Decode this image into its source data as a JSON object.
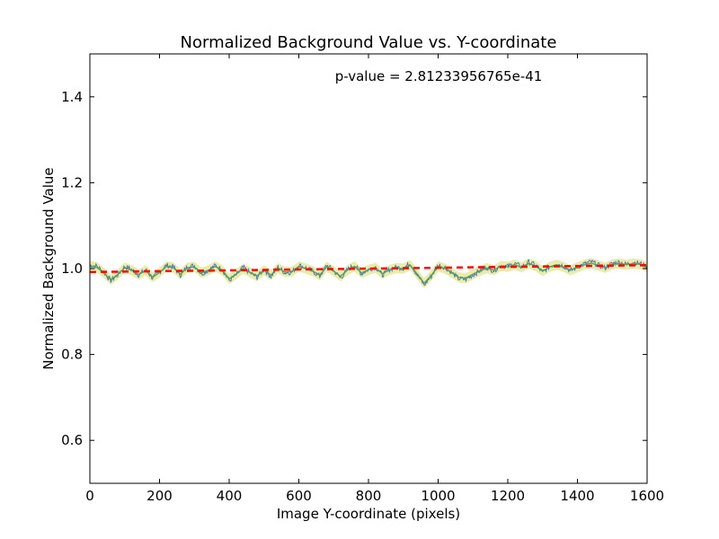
{
  "chart_data": {
    "type": "line",
    "title": "Normalized Background Value vs. Y-coordinate",
    "xlabel": "Image Y-coordinate (pixels)",
    "ylabel": "Normalized Background Value",
    "xlim": [
      0,
      1600
    ],
    "ylim": [
      0.5,
      1.5
    ],
    "x_ticks": [
      0,
      200,
      400,
      600,
      800,
      1000,
      1200,
      1400,
      1600
    ],
    "x_tick_labels": [
      "0",
      "200",
      "400",
      "600",
      "800",
      "1000",
      "1200",
      "1400",
      "1600"
    ],
    "y_ticks": [
      0.6,
      0.8,
      1.0,
      1.2,
      1.4
    ],
    "y_tick_labels": [
      "0.6",
      "0.8",
      "1.0",
      "1.2",
      "1.4"
    ],
    "grid": false,
    "annotation": "p-value = 2.81233956765e-41",
    "colors": {
      "raw": "#4a6fb5",
      "smooth": "#5a9a5a",
      "band": "#e4eaa0",
      "fit": "#ff0000"
    },
    "series": [
      {
        "kind": "raw",
        "x": [
          0,
          20,
          40,
          60,
          80,
          100,
          120,
          140,
          160,
          180,
          200,
          220,
          240,
          260,
          280,
          300,
          320,
          340,
          360,
          380,
          400,
          420,
          440,
          460,
          480,
          500,
          520,
          540,
          560,
          580,
          600,
          620,
          640,
          660,
          680,
          700,
          720,
          740,
          760,
          780,
          800,
          820,
          840,
          860,
          880,
          900,
          920,
          940,
          960,
          980,
          1000,
          1020,
          1040,
          1060,
          1080,
          1100,
          1120,
          1140,
          1160,
          1180,
          1200,
          1220,
          1240,
          1260,
          1280,
          1300,
          1320,
          1340,
          1360,
          1380,
          1400,
          1420,
          1440,
          1460,
          1480,
          1500,
          1520,
          1540,
          1560,
          1580,
          1600
        ],
        "y": [
          1.008,
          1.006,
          0.992,
          0.972,
          0.985,
          1.005,
          0.998,
          0.985,
          0.998,
          0.978,
          0.992,
          1.008,
          1.004,
          0.985,
          1.004,
          1.007,
          0.988,
          0.996,
          1.007,
          0.998,
          0.972,
          0.985,
          1.003,
          0.99,
          0.98,
          0.998,
          0.982,
          1.004,
          0.99,
          0.992,
          1.008,
          1.002,
          0.994,
          0.982,
          1.008,
          0.995,
          0.978,
          0.998,
          1.008,
          0.988,
          0.998,
          1.004,
          0.985,
          0.998,
          1.003,
          1.001,
          1.012,
          0.985,
          0.962,
          0.982,
          1.008,
          1.003,
          0.99,
          0.976,
          0.975,
          0.985,
          0.995,
          1.003,
          0.995,
          1.008,
          1.005,
          1.012,
          1.004,
          1.015,
          1.008,
          0.992,
          1.005,
          1.012,
          1.006,
          0.995,
          1.004,
          1.011,
          1.016,
          1.008,
          1.002,
          1.012,
          1.015,
          1.01,
          1.015,
          1.012,
          1.005
        ]
      },
      {
        "kind": "smoothed",
        "x": [
          0,
          20,
          40,
          60,
          80,
          100,
          120,
          140,
          160,
          180,
          200,
          220,
          240,
          260,
          280,
          300,
          320,
          340,
          360,
          380,
          400,
          420,
          440,
          460,
          480,
          500,
          520,
          540,
          560,
          580,
          600,
          620,
          640,
          660,
          680,
          700,
          720,
          740,
          760,
          780,
          800,
          820,
          840,
          860,
          880,
          900,
          920,
          940,
          960,
          980,
          1000,
          1020,
          1040,
          1060,
          1080,
          1100,
          1120,
          1140,
          1160,
          1180,
          1200,
          1220,
          1240,
          1260,
          1280,
          1300,
          1320,
          1340,
          1360,
          1380,
          1400,
          1420,
          1440,
          1460,
          1480,
          1500,
          1520,
          1540,
          1560,
          1580,
          1600
        ],
        "y": [
          1.006,
          1.003,
          0.99,
          0.974,
          0.986,
          1.002,
          0.996,
          0.986,
          0.996,
          0.98,
          0.991,
          1.005,
          1.002,
          0.987,
          1.002,
          1.004,
          0.99,
          0.996,
          1.005,
          0.996,
          0.976,
          0.987,
          1.0,
          0.991,
          0.983,
          0.996,
          0.985,
          1.001,
          0.992,
          0.993,
          1.005,
          1.0,
          0.994,
          0.985,
          1.004,
          0.994,
          0.982,
          0.997,
          1.005,
          0.99,
          0.997,
          1.002,
          0.988,
          0.997,
          1.001,
          1.0,
          1.008,
          0.987,
          0.966,
          0.984,
          1.005,
          1.0,
          0.99,
          0.979,
          0.978,
          0.987,
          0.995,
          1.001,
          0.996,
          1.006,
          1.004,
          1.009,
          1.003,
          1.012,
          1.006,
          0.994,
          1.004,
          1.009,
          1.004,
          0.996,
          1.003,
          1.009,
          1.013,
          1.007,
          1.002,
          1.01,
          1.012,
          1.009,
          1.012,
          1.01,
          1.004
        ]
      },
      {
        "kind": "fit",
        "x": [
          0,
          1600
        ],
        "y": [
          0.992,
          1.008
        ]
      }
    ]
  }
}
